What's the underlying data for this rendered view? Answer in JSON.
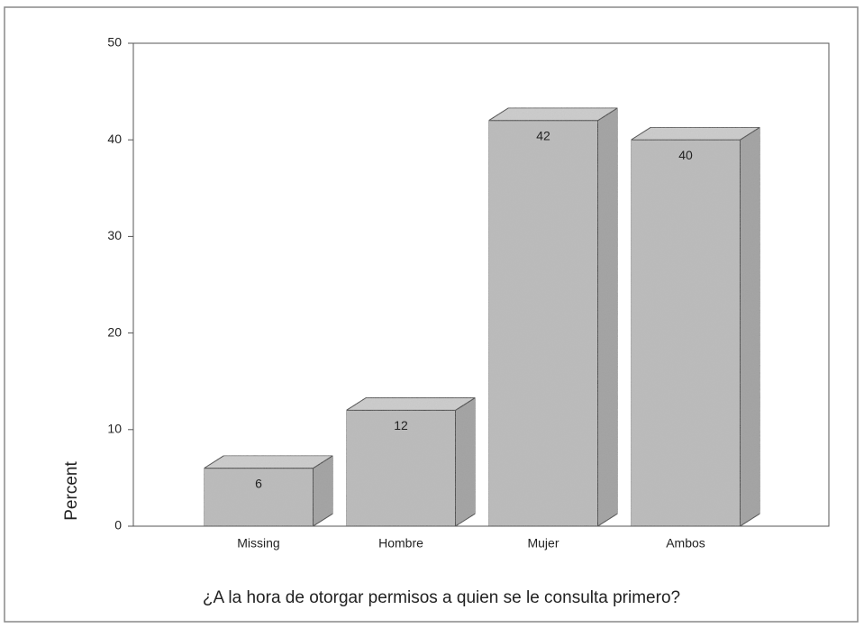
{
  "chart_data": {
    "type": "bar3d",
    "x_label": "¿A la hora de otorgar permisos a quien se le consulta primero?",
    "y_label": "Percent",
    "categories": [
      "Missing",
      "Hombre",
      "Mujer",
      "Ambos"
    ],
    "values": [
      6,
      12,
      42,
      40
    ],
    "color": "#bcbcbc",
    "ylim": [
      0,
      50
    ],
    "yticks": [
      0,
      10,
      20,
      30,
      40,
      50
    ],
    "grid": false
  }
}
